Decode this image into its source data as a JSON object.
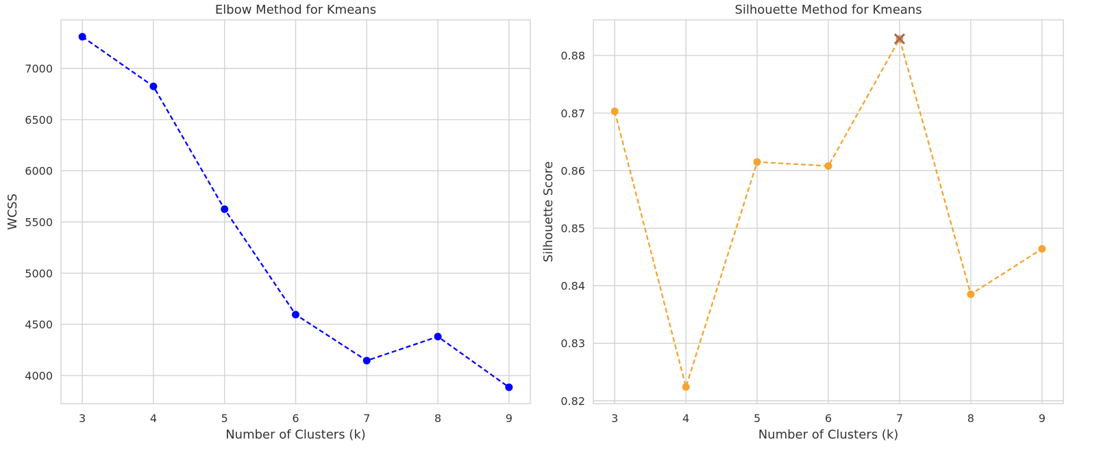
{
  "chart_data": [
    {
      "type": "line",
      "title": "Elbow Method for Kmeans",
      "xlabel": "Number of Clusters (k)",
      "ylabel": "WCSS",
      "x": [
        3,
        4,
        5,
        6,
        7,
        8,
        9
      ],
      "series": [
        {
          "values": [
            7310,
            6825,
            5625,
            4595,
            4145,
            4380,
            3885
          ],
          "color": "#0000ff",
          "line_style": "dashed",
          "marker": "circle"
        }
      ],
      "xlim": [
        2.7,
        9.3
      ],
      "ylim": [
        3725,
        7475
      ],
      "xticks": [
        3,
        4,
        5,
        6,
        7,
        8,
        9
      ],
      "yticks": [
        4000,
        4500,
        5000,
        5500,
        6000,
        6500,
        7000
      ],
      "grid": true
    },
    {
      "type": "line",
      "title": "Silhouette Method for Kmeans",
      "xlabel": "Number of Clusters (k)",
      "ylabel": "Silhouette Score",
      "x": [
        3,
        4,
        5,
        6,
        7,
        8,
        9
      ],
      "series": [
        {
          "values": [
            0.8703,
            0.8224,
            0.8615,
            0.8608,
            0.8829,
            0.8385,
            0.8464
          ],
          "color": "#f5a331",
          "line_style": "dashed",
          "marker": "circle"
        }
      ],
      "highlight": {
        "x": 7,
        "y": 0.8829,
        "marker": "x",
        "color": "#9b6a5f"
      },
      "xlim": [
        2.7,
        9.3
      ],
      "ylim": [
        0.8195,
        0.8862
      ],
      "xticks": [
        3,
        4,
        5,
        6,
        7,
        8,
        9
      ],
      "yticks": [
        0.82,
        0.83,
        0.84,
        0.85,
        0.86,
        0.87,
        0.88
      ],
      "ytick_labels": [
        "0.82",
        "0.83",
        "0.84",
        "0.85",
        "0.86",
        "0.87",
        "0.88"
      ],
      "grid": true
    }
  ]
}
